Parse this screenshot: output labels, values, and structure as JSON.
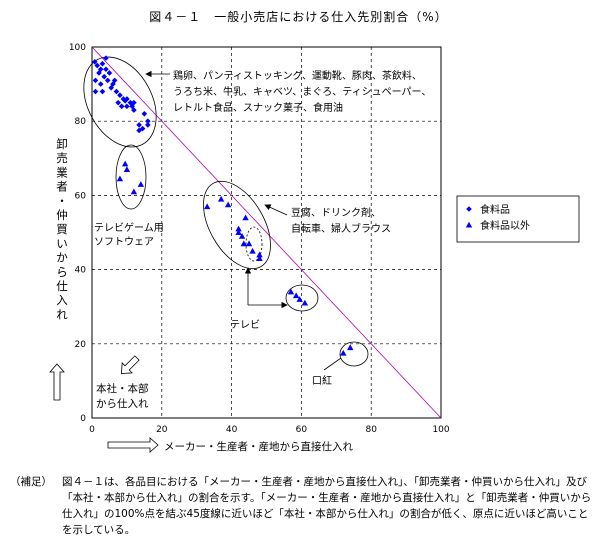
{
  "chart_data": {
    "type": "scatter",
    "title": "図４－１　一般小売店における仕入先別割合（%）",
    "xlabel": "メーカー・生産者・産地から直接仕入れ",
    "ylabel": "卸売業者・仲買いから仕入れ",
    "xlim": [
      0,
      100
    ],
    "ylim": [
      0,
      100
    ],
    "x_ticks": [
      "0",
      "20",
      "40",
      "60",
      "80",
      "100"
    ],
    "y_ticks": [
      "0",
      "20",
      "40",
      "60",
      "80",
      "100"
    ],
    "grid": true,
    "legend_position": "right",
    "series": [
      {
        "name": "食料品",
        "marker": "diamond",
        "color": "#0000ff",
        "points": [
          [
            0.8,
            96
          ],
          [
            1.5,
            95
          ],
          [
            2.5,
            94
          ],
          [
            3,
            95.5
          ],
          [
            2,
            93
          ],
          [
            4,
            94
          ],
          [
            1,
            91
          ],
          [
            3.5,
            92
          ],
          [
            5,
            93
          ],
          [
            4.5,
            91
          ],
          [
            2.5,
            90
          ],
          [
            6,
            90
          ],
          [
            1,
            88
          ],
          [
            3,
            88
          ],
          [
            5.5,
            89
          ],
          [
            7,
            88
          ],
          [
            8,
            87
          ],
          [
            9,
            86
          ],
          [
            7.5,
            85
          ],
          [
            10,
            86
          ],
          [
            11,
            85
          ],
          [
            8.5,
            84
          ],
          [
            10,
            84
          ],
          [
            11.5,
            84
          ],
          [
            12,
            83
          ],
          [
            13.5,
            79
          ],
          [
            14.5,
            78
          ],
          [
            16,
            79
          ],
          [
            16,
            80
          ],
          [
            15,
            82
          ],
          [
            13.5,
            77.5
          ],
          [
            9.5,
            85.5
          ],
          [
            12,
            85
          ],
          [
            6.5,
            91
          ],
          [
            4,
            97
          ]
        ]
      },
      {
        "name": "食料品以外",
        "marker": "triangle",
        "color": "#0000ff",
        "points": [
          [
            9.5,
            68.5
          ],
          [
            10,
            67
          ],
          [
            8,
            64.5
          ],
          [
            12,
            61
          ],
          [
            14,
            63
          ],
          [
            33,
            57
          ],
          [
            37,
            59
          ],
          [
            39,
            57.5
          ],
          [
            44,
            54
          ],
          [
            42,
            51
          ],
          [
            42,
            50
          ],
          [
            43,
            49
          ],
          [
            45,
            47
          ],
          [
            43.5,
            47
          ],
          [
            46,
            45
          ],
          [
            48,
            44
          ],
          [
            48,
            43
          ],
          [
            57,
            34
          ],
          [
            58.5,
            33
          ],
          [
            59.5,
            32
          ],
          [
            61,
            31
          ],
          [
            72,
            17.5
          ],
          [
            74,
            19
          ]
        ]
      }
    ],
    "annotations": [
      "鶏卵、パンティストッキング、運動靴、豚肉、茶飲料、",
      "うろち米、牛乳、キャベツ、まぐろ、ティシュペーパー、",
      "レトルト食品、スナック菓子、食用油",
      "テレビゲーム用",
      "ソフトウェア",
      "豆腐、ドリンク剤、",
      "自転車、婦人ブラウス",
      "テレビ",
      "口紅",
      "本社・本部",
      "から仕入れ"
    ]
  },
  "note": {
    "label": "（補足）",
    "text": "図４－１は、各品目における「メーカー・生産者・産地から直接仕入れ」、「卸売業者・仲買いから仕入れ」及び「本社・本部から仕入れ」の割合を示す。「メーカー・生産者・産地から直接仕入れ」と「卸売業者・仲買いから仕入れ」の100%点を結ぶ45度線に近いほど「本社・本部から仕入れ」の割合が低く、原点に近いほど高いことを示している。"
  }
}
